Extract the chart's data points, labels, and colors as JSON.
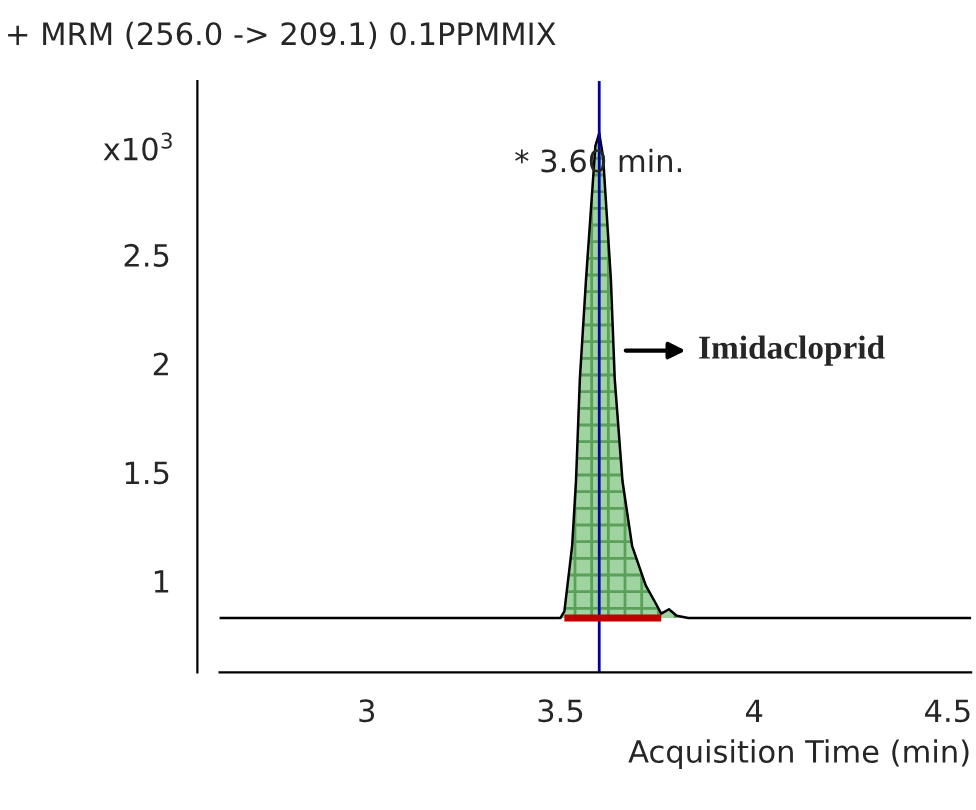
{
  "chart_data": {
    "type": "area",
    "title": "+ MRM (256.0 -> 209.1) 0.1PPMMIX",
    "xlabel": "Acquisition Time (min)",
    "ylabel": "x10$^{3}$",
    "xlim": [
      2.62,
      4.56
    ],
    "xticks": [
      3,
      3.5,
      4,
      4.5
    ],
    "ylim": [
      0.58,
      3.3
    ],
    "yticks": [
      1,
      1.5,
      2,
      2.5
    ],
    "series": [
      {
        "color": "#9fd39f",
        "x": [
          2.62,
          3.0,
          3.5,
          3.51,
          3.53,
          3.54,
          3.55,
          3.566,
          3.59,
          3.6,
          3.61,
          3.63,
          3.64,
          3.66,
          3.685,
          3.72,
          3.745,
          3.76,
          3.78,
          3.8,
          3.83,
          4.0,
          4.56
        ],
        "values": [
          0.83,
          0.83,
          0.83,
          0.86,
          1.16,
          1.46,
          1.93,
          2.39,
          3.0,
          3.06,
          2.95,
          2.39,
          1.93,
          1.46,
          1.16,
          0.98,
          0.9,
          0.85,
          0.87,
          0.84,
          0.83,
          0.83,
          0.83
        ]
      },
      {
        "type": "line",
        "color": "#c00000",
        "x": [
          3.51,
          3.56,
          3.66,
          3.76
        ],
        "values": [
          0.83,
          0.83,
          0.83,
          0.83
        ]
      }
    ],
    "ref_lines": [
      {
        "axis": "x",
        "value": 3.6,
        "color": "#0000aa"
      }
    ],
    "annotations": [
      {
        "text": "* 3.60 min.",
        "x": 3.6,
        "y": 3.06
      },
      {
        "text": "Imidacloprid",
        "x": 3.64,
        "y": 2.06
      }
    ],
    "grid": false,
    "legend": false
  }
}
